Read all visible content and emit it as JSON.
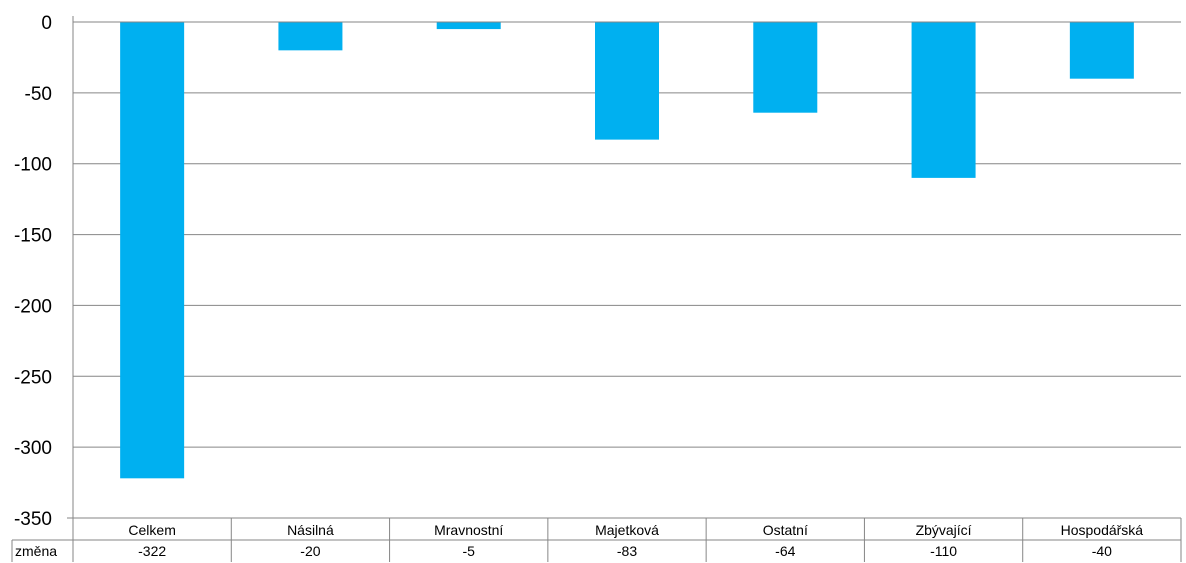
{
  "chart_data": {
    "type": "bar",
    "categories": [
      "Celkem",
      "Násilná",
      "Mravnostní",
      "Majetková",
      "Ostatní",
      "Zbývající",
      "Hospodářská"
    ],
    "series": [
      {
        "name": "změna",
        "values": [
          -322,
          -20,
          -5,
          -83,
          -64,
          -110,
          -40
        ],
        "color": "#00b0f0"
      }
    ],
    "ylim": [
      -350,
      0
    ],
    "yticks": [
      0,
      -50,
      -100,
      -150,
      -200,
      -250,
      -300,
      -350
    ],
    "grid": true,
    "data_table": true
  }
}
